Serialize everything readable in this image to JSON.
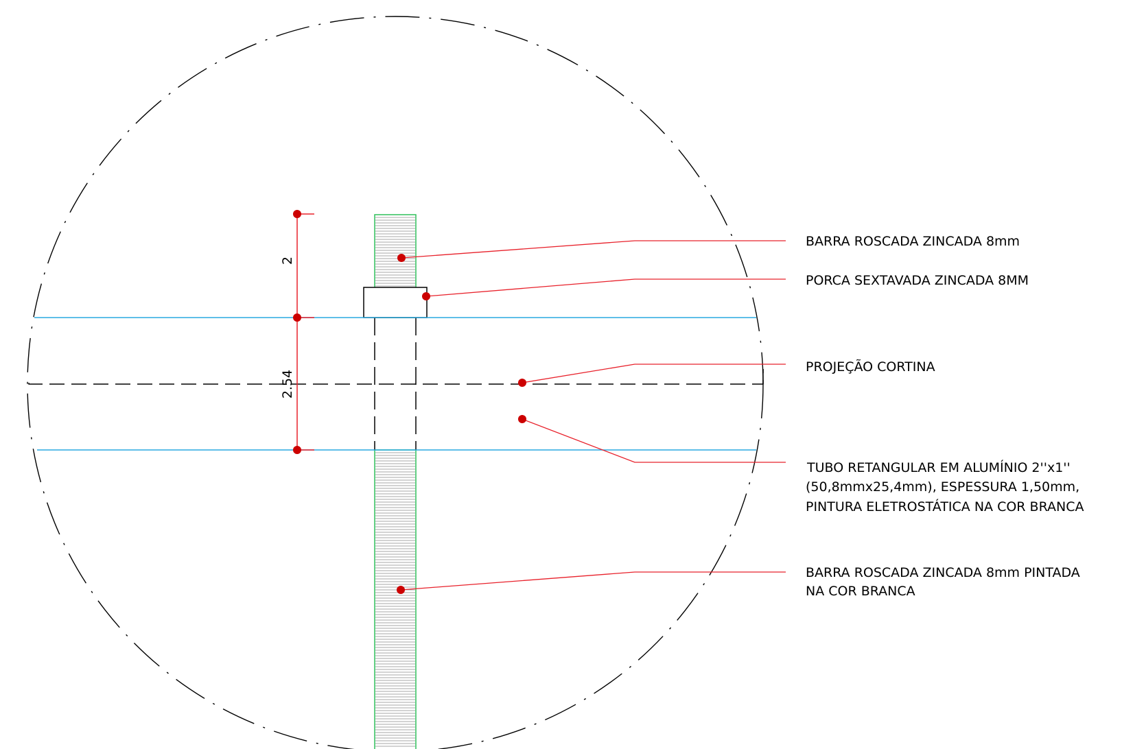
{
  "drawing": {
    "colors": {
      "leader": "#e8202a",
      "leader_dot": "#cc0000",
      "tube_edge": "#29a8e0",
      "rod_outline": "#2fbf5a",
      "hatch": "#8a8a8a",
      "outline": "#000000",
      "background": "#ffffff"
    },
    "dimensions": {
      "upper": "2",
      "lower": "2.54"
    },
    "labels": {
      "rod_top": "BARRA ROSCADA ZINCADA 8mm",
      "nut": "PORCA SEXTAVADA ZINCADA 8MM",
      "curtain": "PROJEÇÃO CORTINA",
      "tube_line1": "TUBO RETANGULAR EM ALUMÍNIO 2''x1''",
      "tube_line2": "(50,8mmx25,4mm), ESPESSURA 1,50mm,",
      "tube_line3": "PINTURA ELETROSTÁTICA NA COR BRANCA",
      "rod_bottom_line1": "BARRA ROSCADA ZINCADA 8mm PINTADA",
      "rod_bottom_line2": "NA COR BRANCA"
    }
  }
}
